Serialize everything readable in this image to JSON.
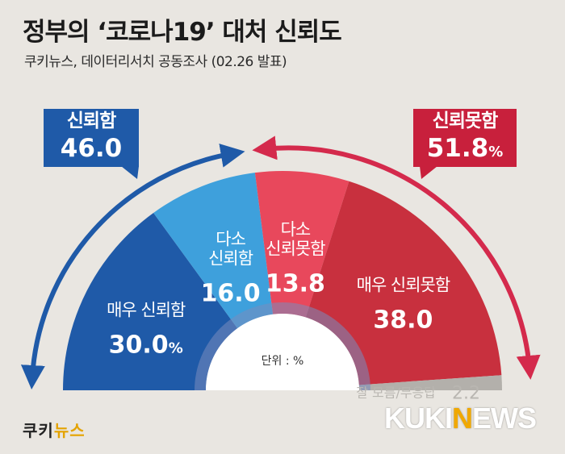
{
  "header": {
    "title": "정부의 ‘코로나19’ 대처 신뢰도",
    "subtitle": "쿠키뉴스, 데이터리서치 공동조사 (02.26 발표)"
  },
  "callouts": {
    "trust": {
      "label": "신뢰함",
      "value": "46.0"
    },
    "distrust": {
      "label": "신뢰못함",
      "value": "51.8",
      "unit": "%"
    }
  },
  "center_label": "단위 : %",
  "chart_data": {
    "type": "pie",
    "style": "semicircle",
    "unit": "%",
    "slices": [
      {
        "label": "매우 신뢰함",
        "value": 30.0,
        "display": "30.0",
        "unit": "%",
        "color": "#1f5aa8"
      },
      {
        "label": "다소 신뢰함",
        "value": 16.0,
        "display": "16.0",
        "unit": "",
        "color": "#3ea0dc"
      },
      {
        "label": "다소 신뢰못함",
        "value": 13.8,
        "display": "13.8",
        "unit": "",
        "color": "#e8485c"
      },
      {
        "label": "매우 신뢰못함",
        "value": 38.0,
        "display": "38.0",
        "unit": "",
        "color": "#c8303e"
      },
      {
        "label": "잘 모름/무응답",
        "value": 2.2,
        "display": "2.2",
        "unit": "",
        "color": "#b3b0ab"
      }
    ]
  },
  "logos": {
    "kuki": {
      "part1": "쿠키",
      "part2": "뉴스"
    },
    "news": {
      "part1": "KUKI",
      "part2": "N",
      "part3": "EWS"
    }
  },
  "colors": {
    "trust_arrow": "#1f5aa8",
    "distrust_arrow": "#d42a4c",
    "background": "#e9e6e1"
  }
}
